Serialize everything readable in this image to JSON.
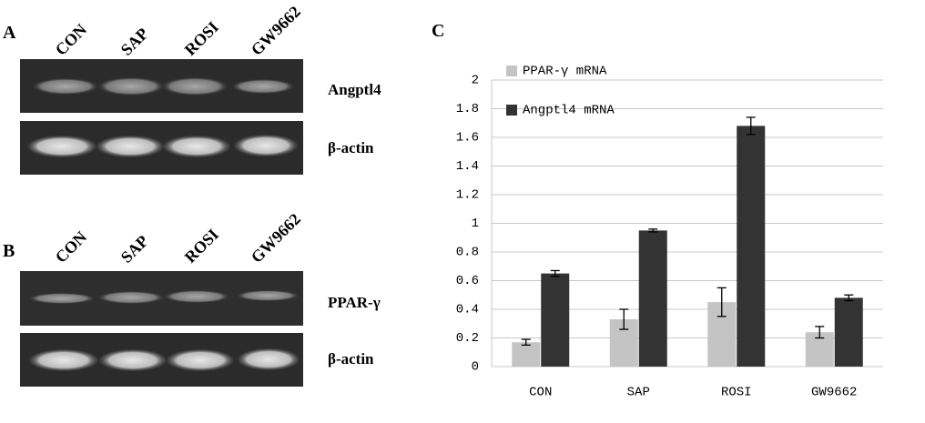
{
  "panel_a": {
    "label": "A",
    "lanes": [
      "CON",
      "SAP",
      "ROSI",
      "GW9662"
    ],
    "bands": [
      "Angptl4",
      "β-actin"
    ]
  },
  "panel_b": {
    "label": "B",
    "lanes": [
      "CON",
      "SAP",
      "ROSI",
      "GW9662"
    ],
    "bands": [
      "PPAR-γ",
      "β-actin"
    ]
  },
  "chart_data": {
    "type": "bar",
    "panel_label": "C",
    "categories": [
      "CON",
      "SAP",
      "ROSI",
      "GW9662"
    ],
    "series": [
      {
        "name": "PPAR-γ mRNA",
        "color": "#c4c4c4",
        "values": [
          0.17,
          0.33,
          0.45,
          0.24
        ],
        "errors": [
          0.02,
          0.07,
          0.1,
          0.04
        ]
      },
      {
        "name": "Angptl4 mRNA",
        "color": "#333333",
        "values": [
          0.65,
          0.95,
          1.68,
          0.48
        ],
        "errors": [
          0.02,
          0.01,
          0.06,
          0.02
        ]
      }
    ],
    "ylim": [
      0,
      2
    ],
    "yticks": [
      0,
      0.2,
      0.4,
      0.6,
      0.8,
      1,
      1.2,
      1.4,
      1.6,
      1.8,
      2
    ],
    "grid": true
  }
}
